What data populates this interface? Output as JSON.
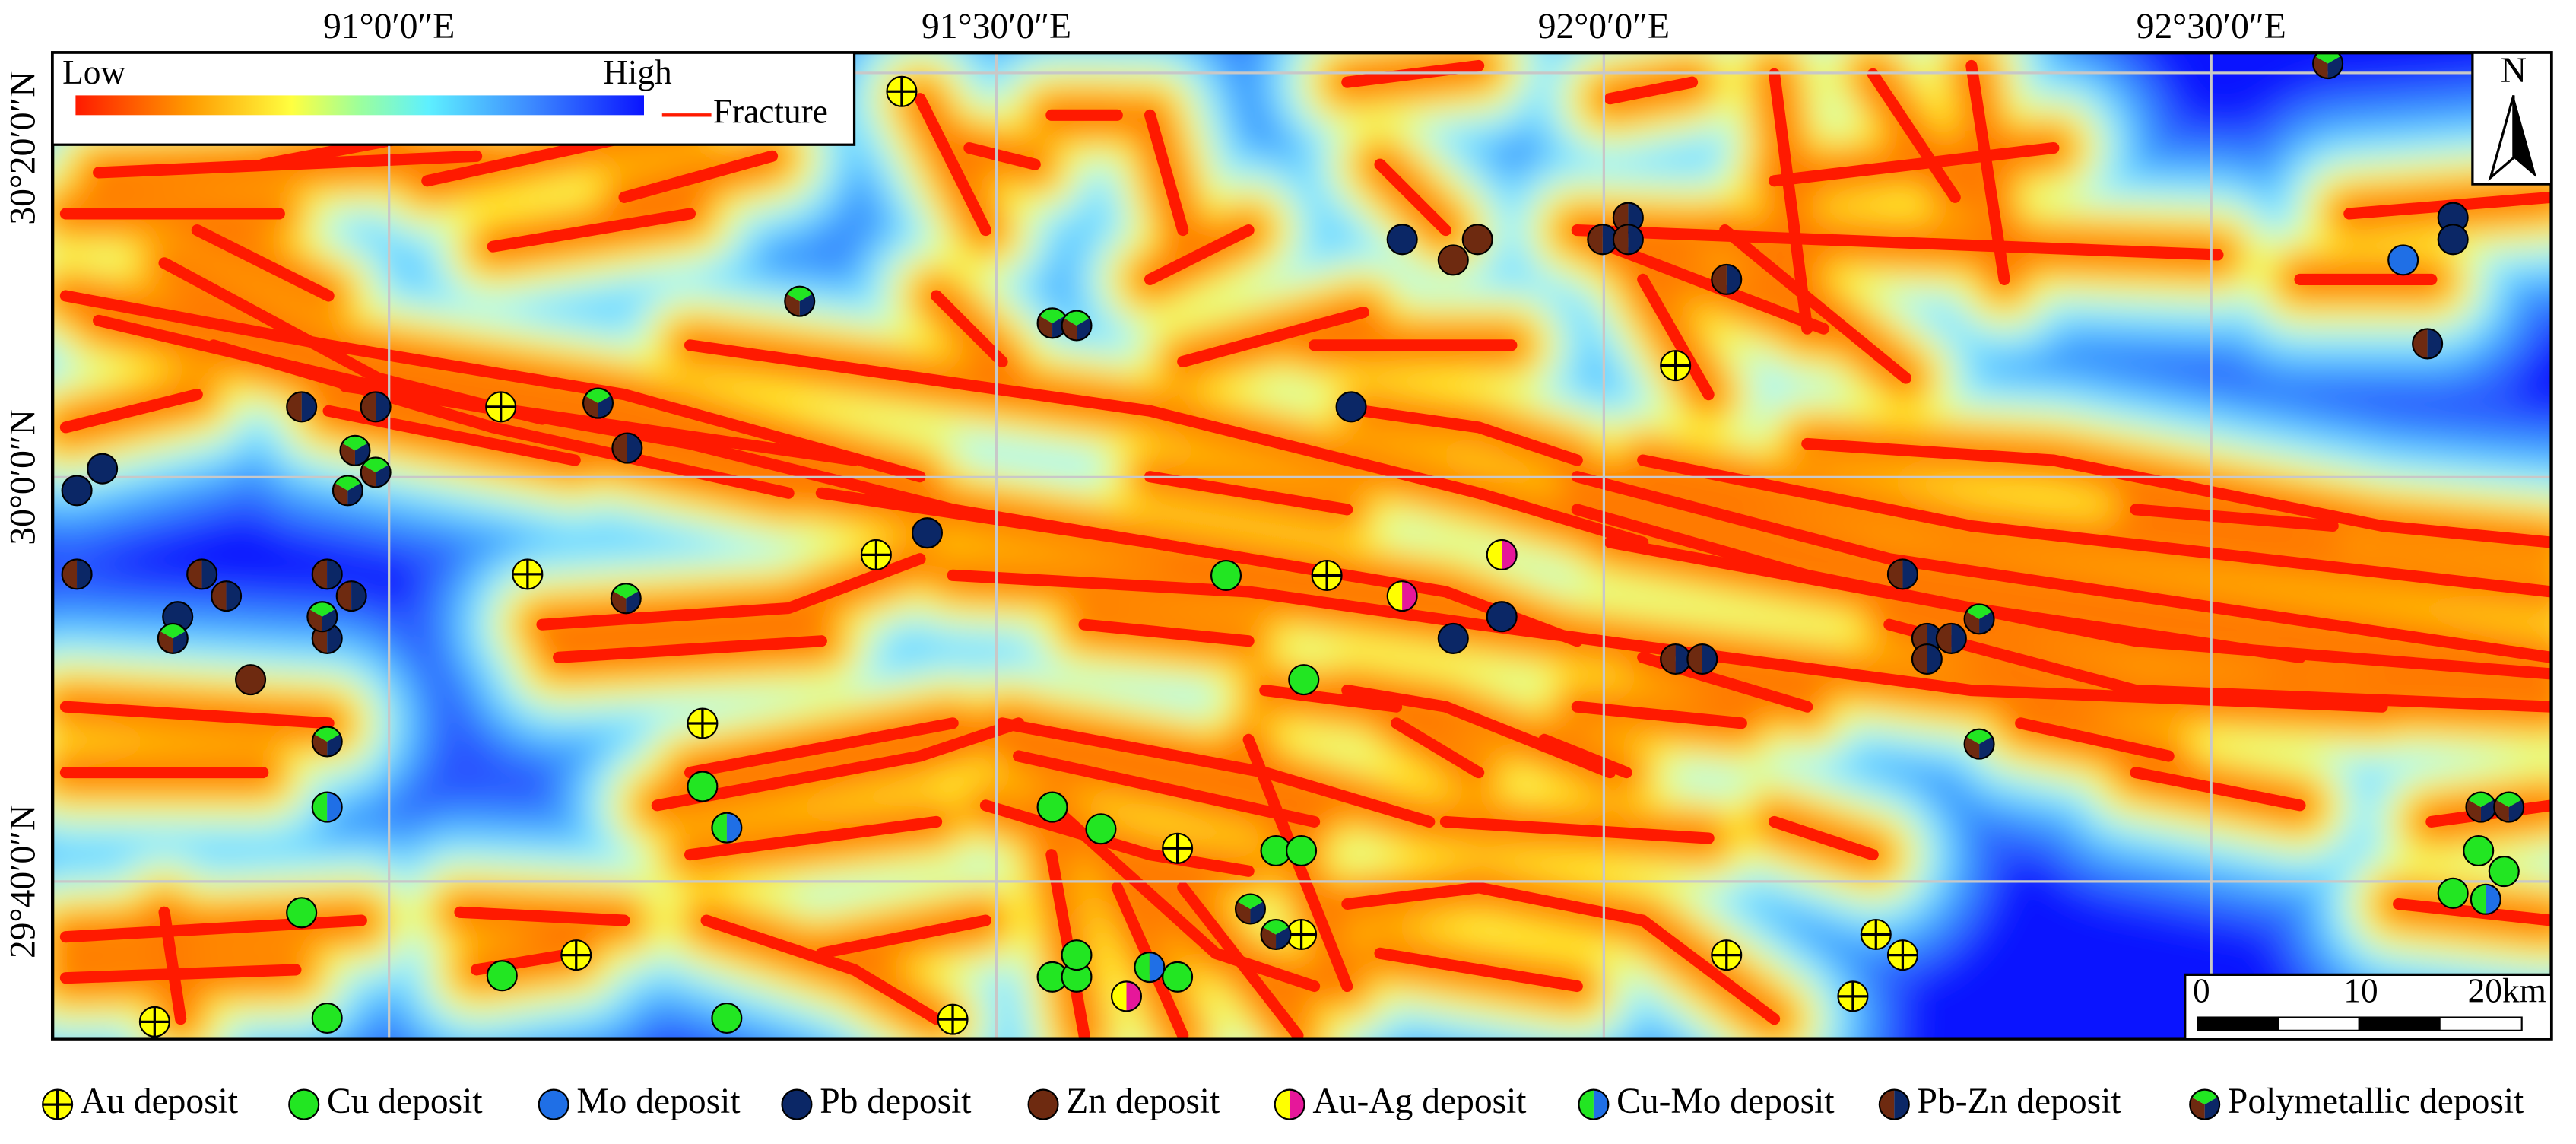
{
  "map": {
    "xlim": [
      90.723,
      92.78
    ],
    "ylim": [
      29.537,
      30.35
    ],
    "lon_ticks": [
      {
        "value": 91,
        "label": "91°0′0″E"
      },
      {
        "value": 91.5,
        "label": "91°30′0″E"
      },
      {
        "value": 92,
        "label": "92°0′0″E"
      },
      {
        "value": 92.5,
        "label": "92°30′0″E"
      }
    ],
    "lat_ticks": [
      {
        "value": 29.6667,
        "label": "29°40′0″N"
      },
      {
        "value": 30,
        "label": "30°0′0″N"
      },
      {
        "value": 30.3333,
        "label": "30°20′0″N"
      }
    ],
    "grid": true,
    "legend": {
      "low": "Low",
      "high": "High",
      "fracture": "Fracture",
      "fracture_color": "#ff1a00"
    },
    "north": "N",
    "scale_bar": [
      "0",
      "10",
      "20km"
    ],
    "deposit_types": [
      {
        "name": "Au deposit",
        "symbol": "cross",
        "colors": [
          "#ffff00"
        ],
        "points": [
          [
            91.422,
            30.318
          ],
          [
            91.092,
            30.058
          ],
          [
            91.114,
            29.92
          ],
          [
            91.401,
            29.936
          ],
          [
            91.772,
            29.919
          ],
          [
            91.258,
            29.797
          ],
          [
            91.649,
            29.694
          ],
          [
            91.154,
            29.606
          ],
          [
            90.807,
            29.551
          ],
          [
            91.464,
            29.553
          ],
          [
            91.751,
            29.623
          ],
          [
            92.059,
            30.092
          ],
          [
            92.101,
            29.606
          ],
          [
            92.224,
            29.623
          ],
          [
            92.246,
            29.606
          ],
          [
            92.205,
            29.572
          ]
        ]
      },
      {
        "name": "Cu deposit",
        "colors": [
          "#22e622"
        ],
        "points": [
          [
            91.689,
            29.919
          ],
          [
            91.753,
            29.833
          ],
          [
            91.258,
            29.745
          ],
          [
            91.546,
            29.728
          ],
          [
            91.586,
            29.71
          ],
          [
            91.73,
            29.692
          ],
          [
            91.751,
            29.692
          ],
          [
            90.928,
            29.641
          ],
          [
            91.093,
            29.589
          ],
          [
            90.949,
            29.554
          ],
          [
            91.278,
            29.554
          ],
          [
            91.546,
            29.588
          ],
          [
            91.566,
            29.588
          ],
          [
            91.566,
            29.606
          ],
          [
            91.649,
            29.588
          ],
          [
            92.72,
            29.692
          ],
          [
            92.741,
            29.675
          ],
          [
            92.699,
            29.657
          ]
        ]
      },
      {
        "name": "Mo deposit",
        "colors": [
          "#1f6fe6"
        ],
        "points": [
          [
            92.658,
            30.179
          ]
        ]
      },
      {
        "name": "Pb deposit",
        "colors": [
          "#0b2766"
        ],
        "points": [
          [
            90.743,
            29.989
          ],
          [
            90.764,
            30.007
          ],
          [
            90.826,
            29.885
          ],
          [
            91.443,
            29.954
          ],
          [
            91.792,
            30.058
          ],
          [
            91.834,
            30.196
          ],
          [
            91.876,
            29.867
          ],
          [
            91.916,
            29.885
          ],
          [
            92.699,
            30.214
          ],
          [
            92.699,
            30.196
          ]
        ]
      },
      {
        "name": "Zn deposit",
        "colors": [
          "#6e2a10"
        ],
        "points": [
          [
            90.886,
            29.833
          ],
          [
            91.876,
            30.179
          ],
          [
            91.896,
            30.196
          ]
        ]
      },
      {
        "name": "Au-Ag deposit",
        "colors": [
          "#ffff00",
          "#e6179a"
        ],
        "points": [
          [
            91.916,
            29.936
          ],
          [
            91.834,
            29.902
          ],
          [
            91.607,
            29.572
          ]
        ]
      },
      {
        "name": "Cu-Mo deposit",
        "colors": [
          "#22e622",
          "#1f6fe6"
        ],
        "points": [
          [
            91.278,
            29.711
          ],
          [
            90.949,
            29.728
          ],
          [
            91.626,
            29.596
          ],
          [
            92.726,
            29.652
          ]
        ]
      },
      {
        "name": "Pb-Zn deposit",
        "colors": [
          "#6e2a10",
          "#0b2766"
        ],
        "points": [
          [
            90.928,
            30.058
          ],
          [
            90.989,
            30.058
          ],
          [
            91.196,
            30.024
          ],
          [
            90.743,
            29.92
          ],
          [
            90.846,
            29.92
          ],
          [
            90.866,
            29.902
          ],
          [
            90.949,
            29.92
          ],
          [
            90.969,
            29.902
          ],
          [
            90.949,
            29.867
          ],
          [
            91.999,
            30.196
          ],
          [
            92.02,
            30.214
          ],
          [
            92.02,
            30.196
          ],
          [
            92.101,
            30.163
          ],
          [
            92.246,
            29.92
          ],
          [
            92.266,
            29.867
          ],
          [
            92.286,
            29.867
          ],
          [
            92.266,
            29.85
          ],
          [
            92.059,
            29.85
          ],
          [
            92.081,
            29.85
          ],
          [
            92.678,
            30.11
          ]
        ]
      },
      {
        "name": "Polymetallic deposit",
        "colors": [
          "#6e2a10",
          "#22e622",
          "#0b2766"
        ],
        "points": [
          [
            91.338,
            30.145
          ],
          [
            91.172,
            30.061
          ],
          [
            91.546,
            30.127
          ],
          [
            91.566,
            30.125
          ],
          [
            90.972,
            30.022
          ],
          [
            90.989,
            30.004
          ],
          [
            90.966,
            29.989
          ],
          [
            91.195,
            29.9
          ],
          [
            90.945,
            29.885
          ],
          [
            90.822,
            29.867
          ],
          [
            90.949,
            29.782
          ],
          [
            91.709,
            29.644
          ],
          [
            91.73,
            29.623
          ],
          [
            92.309,
            29.883
          ],
          [
            92.309,
            29.78
          ],
          [
            92.722,
            29.728
          ],
          [
            92.745,
            29.728
          ],
          [
            92.596,
            30.341
          ]
        ]
      }
    ]
  }
}
